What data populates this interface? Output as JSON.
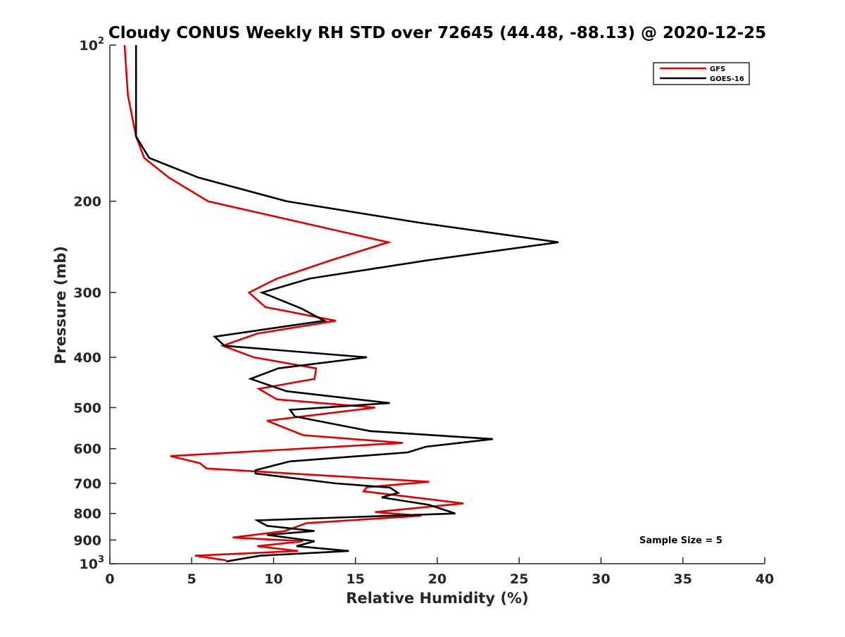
{
  "chart_data": {
    "type": "line",
    "title": "Cloudy CONUS Weekly RH STD over 72645 (44.48, -88.13) @ 2020-12-25",
    "xlabel": "Relative Humidity (%)",
    "ylabel": "Pressure (mb)",
    "xlim": [
      0,
      40
    ],
    "ylim": [
      100,
      1000
    ],
    "y_scale": "log",
    "y_reversed": true,
    "grid": false,
    "legend_position": "top-right",
    "x_ticks": [
      0,
      5,
      10,
      15,
      20,
      25,
      30,
      35,
      40
    ],
    "x_tick_labels": [
      "0",
      "5",
      "10",
      "15",
      "20",
      "25",
      "30",
      "35",
      "40"
    ],
    "y_ticks": [
      100,
      200,
      300,
      400,
      500,
      600,
      700,
      800,
      900,
      1000
    ],
    "y_tick_labels": [
      {
        "base": "10",
        "exp": "2"
      },
      {
        "base": "200",
        "exp": ""
      },
      {
        "base": "300",
        "exp": ""
      },
      {
        "base": "400",
        "exp": ""
      },
      {
        "base": "500",
        "exp": ""
      },
      {
        "base": "600",
        "exp": ""
      },
      {
        "base": "700",
        "exp": ""
      },
      {
        "base": "800",
        "exp": ""
      },
      {
        "base": "900",
        "exp": ""
      },
      {
        "base": "10",
        "exp": "3"
      }
    ],
    "annotation": "Sample Size = 5",
    "series": [
      {
        "name": "GFS",
        "color": "#e00000",
        "points": [
          [
            0.9,
            100
          ],
          [
            1.1,
            125
          ],
          [
            1.6,
            150
          ],
          [
            2.1,
            165
          ],
          [
            3.6,
            180
          ],
          [
            6.0,
            200
          ],
          [
            17.0,
            240
          ],
          [
            13.5,
            260
          ],
          [
            10.2,
            282
          ],
          [
            8.5,
            300
          ],
          [
            9.5,
            320
          ],
          [
            13.8,
            340
          ],
          [
            9.0,
            360
          ],
          [
            6.9,
            380
          ],
          [
            8.8,
            400
          ],
          [
            12.6,
            420
          ],
          [
            12.5,
            440
          ],
          [
            9.1,
            460
          ],
          [
            10.2,
            482
          ],
          [
            16.2,
            500
          ],
          [
            9.6,
            530
          ],
          [
            11.8,
            565
          ],
          [
            17.9,
            585
          ],
          [
            3.7,
            620
          ],
          [
            5.5,
            640
          ],
          [
            5.9,
            655
          ],
          [
            19.5,
            695
          ],
          [
            15.7,
            712
          ],
          [
            15.5,
            725
          ],
          [
            21.6,
            765
          ],
          [
            16.2,
            795
          ],
          [
            19.0,
            808
          ],
          [
            12.0,
            835
          ],
          [
            10.7,
            865
          ],
          [
            7.5,
            890
          ],
          [
            11.8,
            905
          ],
          [
            9.0,
            925
          ],
          [
            11.5,
            945
          ],
          [
            5.2,
            965
          ],
          [
            7.1,
            985
          ]
        ]
      },
      {
        "name": "GOES-16",
        "color": "#000000",
        "points": [
          [
            1.6,
            100
          ],
          [
            1.6,
            125
          ],
          [
            1.6,
            150
          ],
          [
            2.4,
            165
          ],
          [
            5.4,
            180
          ],
          [
            10.8,
            200
          ],
          [
            18.9,
            220
          ],
          [
            27.4,
            240
          ],
          [
            19.4,
            260
          ],
          [
            12.2,
            282
          ],
          [
            9.3,
            300
          ],
          [
            11.7,
            322
          ],
          [
            13.1,
            340
          ],
          [
            6.4,
            365
          ],
          [
            7.0,
            380
          ],
          [
            15.7,
            400
          ],
          [
            10.3,
            420
          ],
          [
            8.6,
            440
          ],
          [
            10.8,
            465
          ],
          [
            17.1,
            490
          ],
          [
            11.0,
            505
          ],
          [
            11.3,
            520
          ],
          [
            15.9,
            555
          ],
          [
            23.4,
            575
          ],
          [
            19.3,
            595
          ],
          [
            18.2,
            610
          ],
          [
            11.0,
            635
          ],
          [
            8.9,
            660
          ],
          [
            8.9,
            670
          ],
          [
            13.8,
            700
          ],
          [
            17.1,
            713
          ],
          [
            17.6,
            730
          ],
          [
            16.6,
            745
          ],
          [
            19.5,
            770
          ],
          [
            21.1,
            800
          ],
          [
            9.0,
            825
          ],
          [
            9.6,
            845
          ],
          [
            12.5,
            865
          ],
          [
            9.6,
            880
          ],
          [
            12.5,
            905
          ],
          [
            11.4,
            925
          ],
          [
            14.6,
            945
          ],
          [
            9.2,
            965
          ],
          [
            7.1,
            990
          ]
        ]
      }
    ]
  }
}
